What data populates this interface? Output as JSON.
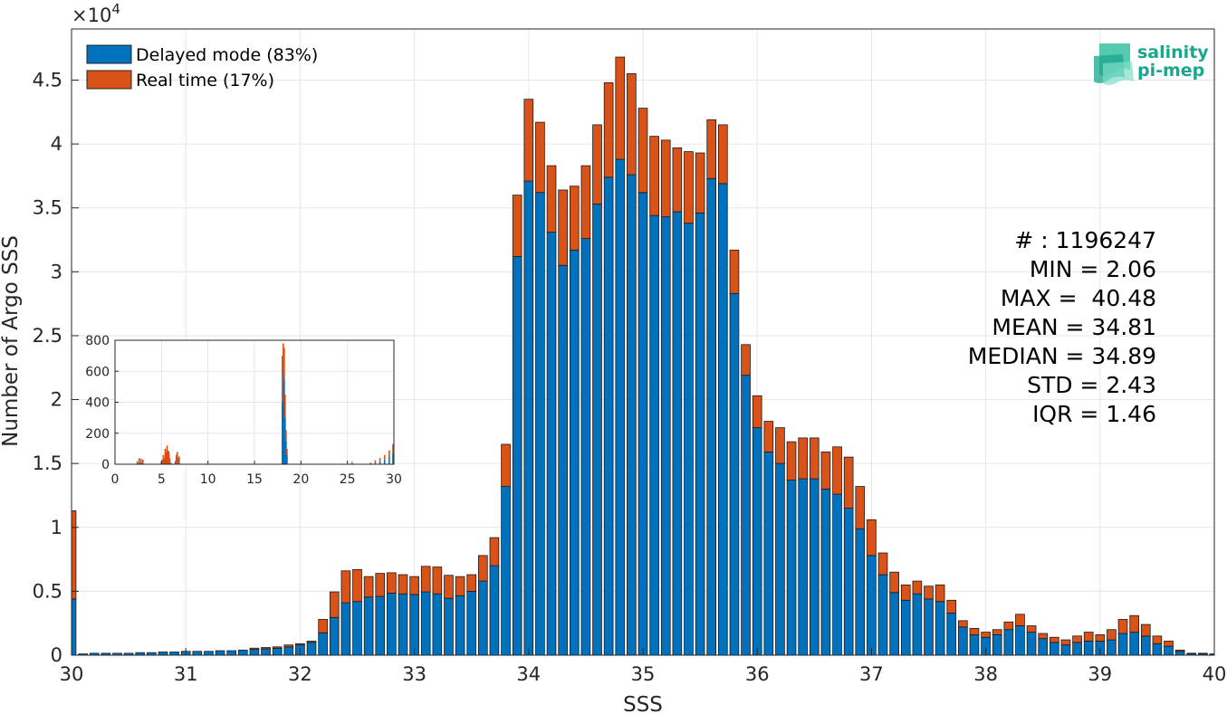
{
  "chart_data": [
    {
      "type": "bar",
      "stacked": true,
      "xlabel": "SSS",
      "ylabel": "Number of Argo SSS",
      "y_exponent": "×10",
      "y_exponent_power": "4",
      "xlim": [
        30,
        40
      ],
      "ylim": [
        0,
        49000
      ],
      "xticks": [
        "30",
        "31",
        "32",
        "33",
        "34",
        "35",
        "36",
        "37",
        "38",
        "39",
        "40"
      ],
      "yticks": [
        "0",
        "0.5",
        "1",
        "1.5",
        "2",
        "2.5",
        "3",
        "3.5",
        "4",
        "4.5"
      ],
      "grid": true,
      "legend_position": "top-left",
      "bin_width": 0.1,
      "x": [
        30.0,
        30.1,
        30.2,
        30.3,
        30.4,
        30.5,
        30.6,
        30.7,
        30.8,
        30.9,
        31.0,
        31.1,
        31.2,
        31.3,
        31.4,
        31.5,
        31.6,
        31.7,
        31.8,
        31.9,
        32.0,
        32.1,
        32.2,
        32.3,
        32.4,
        32.5,
        32.6,
        32.7,
        32.8,
        32.9,
        33.0,
        33.1,
        33.2,
        33.3,
        33.4,
        33.5,
        33.6,
        33.7,
        33.8,
        33.9,
        34.0,
        34.1,
        34.2,
        34.3,
        34.4,
        34.5,
        34.6,
        34.7,
        34.8,
        34.9,
        35.0,
        35.1,
        35.2,
        35.3,
        35.4,
        35.5,
        35.6,
        35.7,
        35.8,
        35.9,
        36.0,
        36.1,
        36.2,
        36.3,
        36.4,
        36.5,
        36.6,
        36.7,
        36.8,
        36.9,
        37.0,
        37.1,
        37.2,
        37.3,
        37.4,
        37.5,
        37.6,
        37.7,
        37.8,
        37.9,
        38.0,
        38.1,
        38.2,
        38.3,
        38.4,
        38.5,
        38.6,
        38.7,
        38.8,
        38.9,
        39.0,
        39.1,
        39.2,
        39.3,
        39.4,
        39.5,
        39.6,
        39.7,
        39.8,
        39.9,
        40.0
      ],
      "series": [
        {
          "name": "Delayed mode (83%)",
          "color": "#0072bd",
          "values": [
            4400,
            100,
            150,
            150,
            150,
            150,
            200,
            200,
            250,
            250,
            300,
            300,
            300,
            350,
            350,
            400,
            450,
            500,
            550,
            650,
            800,
            1000,
            1750,
            2950,
            4100,
            4200,
            4550,
            4600,
            4850,
            4800,
            4750,
            4950,
            4800,
            4450,
            4650,
            5000,
            5800,
            7000,
            13200,
            31200,
            37100,
            36200,
            33100,
            30500,
            31700,
            32600,
            35300,
            37400,
            38800,
            37600,
            36200,
            34400,
            34300,
            34700,
            33800,
            34600,
            37300,
            36900,
            28300,
            21900,
            17800,
            15900,
            15000,
            13700,
            13800,
            13800,
            13000,
            12600,
            11500,
            9900,
            7800,
            6300,
            4900,
            4300,
            4800,
            4400,
            4200,
            3300,
            2200,
            1600,
            1400,
            1600,
            2000,
            2300,
            1800,
            1300,
            1000,
            800,
            1000,
            1100,
            1100,
            1200,
            1700,
            1800,
            1500,
            900,
            700,
            300,
            100,
            100,
            50
          ]
        },
        {
          "name": "Real time (17%)",
          "color": "#d95319",
          "values": [
            6900,
            0,
            0,
            0,
            0,
            0,
            0,
            0,
            0,
            0,
            0,
            0,
            0,
            0,
            0,
            0,
            100,
            100,
            100,
            150,
            100,
            100,
            1050,
            2000,
            2500,
            2500,
            1600,
            1800,
            1600,
            1500,
            1400,
            2000,
            2100,
            1800,
            1500,
            1300,
            2000,
            2200,
            3300,
            4800,
            6400,
            5500,
            5200,
            5900,
            5000,
            5700,
            6200,
            7400,
            8000,
            7900,
            6600,
            6200,
            6000,
            5000,
            5600,
            4700,
            4600,
            4600,
            3400,
            2400,
            2500,
            2400,
            2800,
            3000,
            3200,
            3200,
            2900,
            3700,
            4000,
            3300,
            2800,
            1700,
            1600,
            1200,
            1000,
            1000,
            1300,
            1000,
            500,
            500,
            400,
            400,
            600,
            900,
            500,
            400,
            400,
            400,
            500,
            700,
            500,
            800,
            1100,
            1300,
            900,
            600,
            400,
            100,
            50,
            50,
            50
          ]
        }
      ]
    },
    {
      "type": "bar",
      "stacked": true,
      "inset": true,
      "xlim": [
        0,
        30
      ],
      "ylim": [
        0,
        800
      ],
      "xticks": [
        "0",
        "5",
        "10",
        "15",
        "20",
        "25",
        "30"
      ],
      "yticks": [
        "0",
        "200",
        "400",
        "600",
        "800"
      ],
      "grid": true,
      "bin_width": 0.1,
      "series": [
        {
          "name": "Delayed mode (83%)",
          "color": "#0072bd",
          "points": [
            [
              2.5,
              5
            ],
            [
              2.7,
              10
            ],
            [
              2.9,
              10
            ],
            [
              5.0,
              15
            ],
            [
              5.3,
              40
            ],
            [
              5.5,
              80
            ],
            [
              5.7,
              90
            ],
            [
              6.0,
              10
            ],
            [
              6.5,
              20
            ],
            [
              6.8,
              40
            ],
            [
              18.0,
              400
            ],
            [
              18.1,
              600
            ],
            [
              18.2,
              550
            ],
            [
              18.3,
              300
            ],
            [
              18.4,
              150
            ],
            [
              18.5,
              60
            ],
            [
              25.5,
              5
            ],
            [
              28.0,
              10
            ],
            [
              28.5,
              20
            ],
            [
              29.0,
              30
            ],
            [
              29.5,
              50
            ],
            [
              29.9,
              70
            ]
          ]
        },
        {
          "name": "Real time (17%)",
          "color": "#d95319",
          "points": [
            [
              2.4,
              20
            ],
            [
              2.6,
              40
            ],
            [
              2.8,
              35
            ],
            [
              3.0,
              30
            ],
            [
              5.1,
              30
            ],
            [
              5.2,
              60
            ],
            [
              5.4,
              100
            ],
            [
              5.6,
              120
            ],
            [
              5.8,
              80
            ],
            [
              5.9,
              40
            ],
            [
              6.6,
              60
            ],
            [
              6.7,
              80
            ],
            [
              6.9,
              50
            ],
            [
              18.0,
              300
            ],
            [
              18.1,
              180
            ],
            [
              18.2,
              200
            ],
            [
              18.3,
              150
            ],
            [
              18.4,
              70
            ],
            [
              18.5,
              40
            ],
            [
              25.5,
              10
            ],
            [
              27.5,
              10
            ],
            [
              28.0,
              15
            ],
            [
              28.5,
              20
            ],
            [
              29.0,
              30
            ],
            [
              29.5,
              40
            ],
            [
              29.9,
              60
            ]
          ]
        }
      ]
    }
  ],
  "legend": {
    "items": [
      {
        "label": "Delayed mode (83%)",
        "color": "#0072bd"
      },
      {
        "label": "Real time (17%)",
        "color": "#d95319"
      }
    ]
  },
  "stats": {
    "count": "# : 1196247",
    "min": "MIN = 2.06",
    "max": "MAX =  40.48",
    "mean": "MEAN = 34.81",
    "median": "MEDIAN = 34.89",
    "std": "STD = 2.43",
    "iqr": "IQR = 1.46"
  },
  "logo": {
    "line1": "salinity",
    "line2": "pi-mep"
  },
  "colors": {
    "delayed": "#0072bd",
    "realtime": "#d95319",
    "grid": "#e6e6e6",
    "axis": "#262626",
    "logo": "#1aa68c"
  }
}
